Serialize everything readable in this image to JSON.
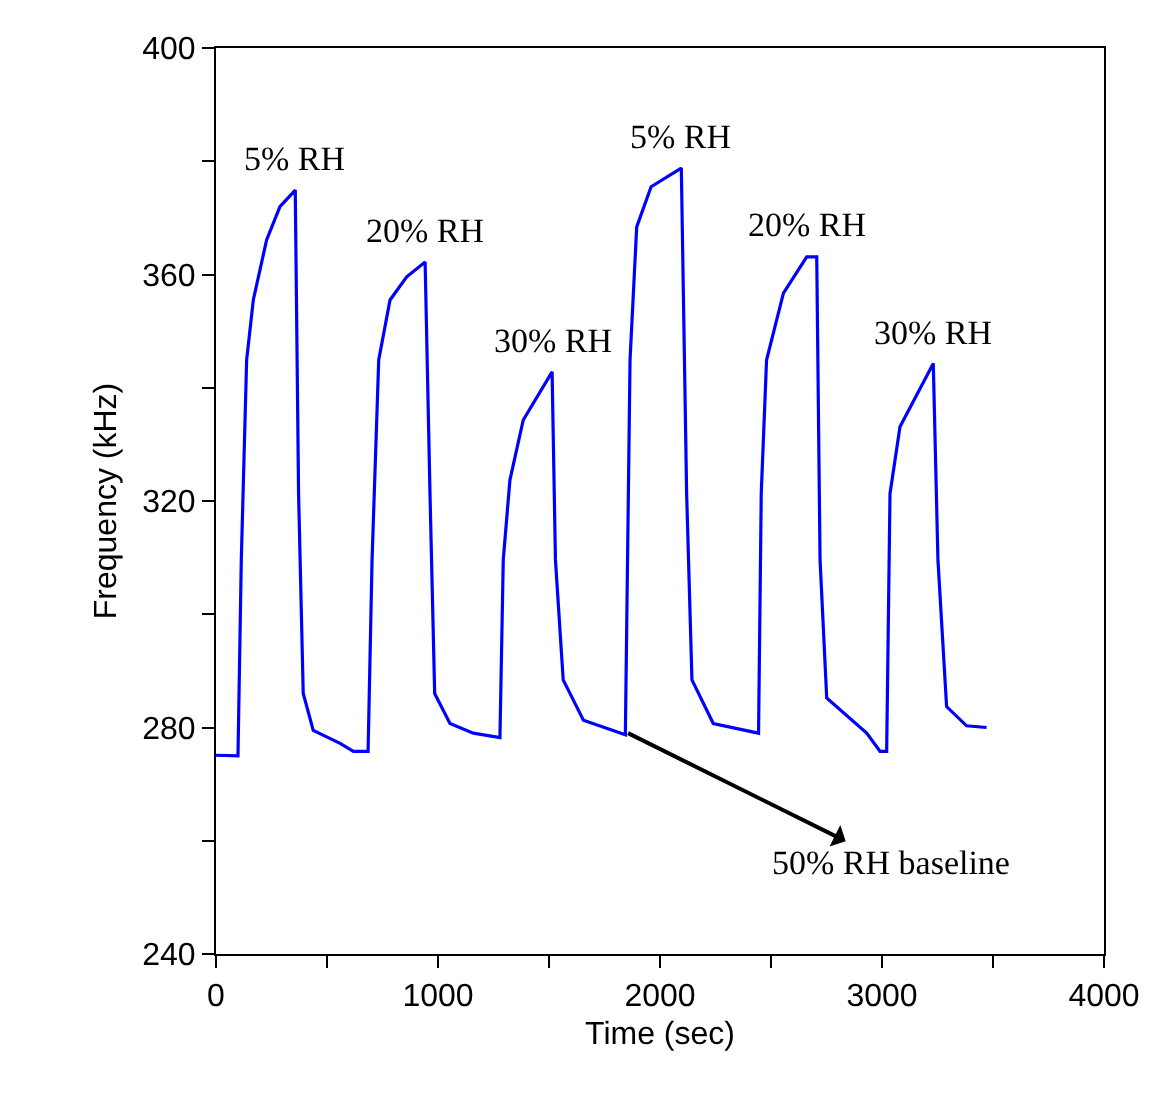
{
  "chart_data": {
    "type": "line",
    "xlabel": "Time (sec)",
    "ylabel": "Frequency (kHz)",
    "xlim": [
      0,
      4000
    ],
    "ylim": [
      240,
      400
    ],
    "xticks": [
      0,
      {
        "value": 500,
        "label": null
      },
      1000,
      {
        "value": 1500,
        "label": null
      },
      2000,
      {
        "value": 2500,
        "label": null
      },
      3000,
      {
        "value": 3500,
        "label": null
      },
      4000
    ],
    "yticks": [
      240,
      {
        "value": 260,
        "label": null
      },
      280,
      {
        "value": 300,
        "label": null
      },
      320,
      {
        "value": 340,
        "label": null
      },
      360,
      {
        "value": 380,
        "label": null
      },
      400
    ],
    "marker": "none",
    "line_style": "solid",
    "series": [
      {
        "color": "#0000ff",
        "x": [
          0,
          99,
          114,
          138,
          168,
          228,
          288,
          357,
          372,
          393,
          438,
          559,
          619,
          685,
          703,
          733,
          784,
          859,
          942,
          964,
          985,
          1054,
          1159,
          1279,
          1294,
          1324,
          1384,
          1514,
          1529,
          1564,
          1655,
          1844,
          1865,
          1895,
          1960,
          2096,
          2120,
          2144,
          2240,
          2444,
          2456,
          2480,
          2556,
          2661,
          2706,
          2721,
          2751,
          2931,
          2991,
          3021,
          3036,
          3081,
          3231,
          3252,
          3291,
          3381,
          3471
        ],
        "values": [
          275.1,
          275,
          309.6,
          344.9,
          355.5,
          366.1,
          372,
          374.9,
          321.3,
          286,
          279.5,
          277.2,
          275.8,
          275.8,
          309.6,
          344.9,
          355.5,
          359.6,
          362.2,
          321.3,
          286,
          280.7,
          279,
          278.2,
          309.6,
          323.7,
          334.3,
          342.8,
          309.6,
          288.4,
          281.3,
          278.7,
          344.9,
          368.4,
          375.5,
          378.8,
          321.3,
          288.4,
          280.7,
          279,
          321.3,
          344.9,
          356.7,
          363.1,
          363.1,
          309.6,
          285.2,
          279,
          275.8,
          275.8,
          321.3,
          333.1,
          344.3,
          309.6,
          283.7,
          280.3,
          280
        ]
      }
    ],
    "annotations": [
      {
        "text": "5% RH",
        "x": 357,
        "y": 374.9
      },
      {
        "text": "20% RH",
        "x": 942,
        "y": 362.2
      },
      {
        "text": "30% RH",
        "x": 1514,
        "y": 342.8
      },
      {
        "text": "5% RH",
        "x": 2096,
        "y": 378.8
      },
      {
        "text": "20% RH",
        "x": 2661,
        "y": 363.1
      },
      {
        "text": "30% RH",
        "x": 3231,
        "y": 344.3
      },
      {
        "text": "50% RH baseline",
        "x": 1856,
        "y": 279
      }
    ]
  }
}
